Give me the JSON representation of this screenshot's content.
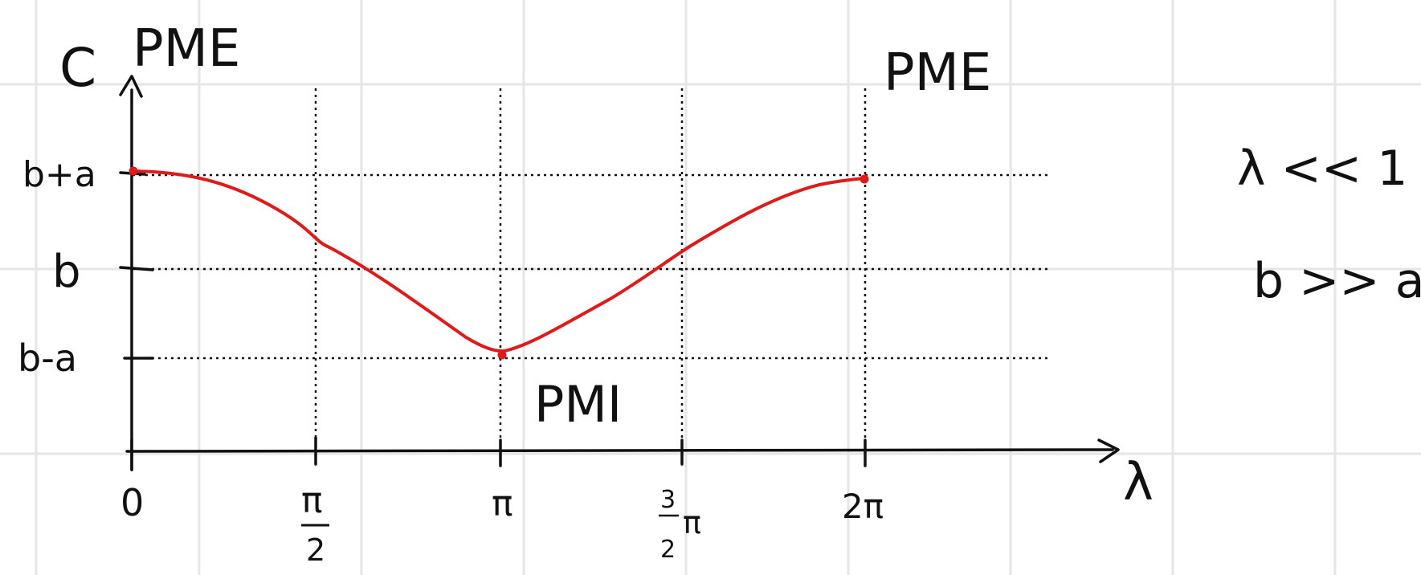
{
  "axes": {
    "y_label": "C",
    "x_label": "λ"
  },
  "y_ticks": [
    "b+a",
    "b",
    "b-a"
  ],
  "x_ticks": {
    "zero": "0",
    "half_pi_num": "π",
    "half_pi_den": "2",
    "pi": "π",
    "three_half_num": "3",
    "three_half_den": "2",
    "three_half_pi": "π",
    "two_pi": "2π"
  },
  "annotations": {
    "pme_left": "PME",
    "pme_right": "PME",
    "pmi": "PMI",
    "condition_1": "λ << 1",
    "condition_2": "b >> a"
  },
  "colors": {
    "curve": "#e01a1a",
    "grid": "#e6e6e6",
    "ink": "#111111"
  }
}
